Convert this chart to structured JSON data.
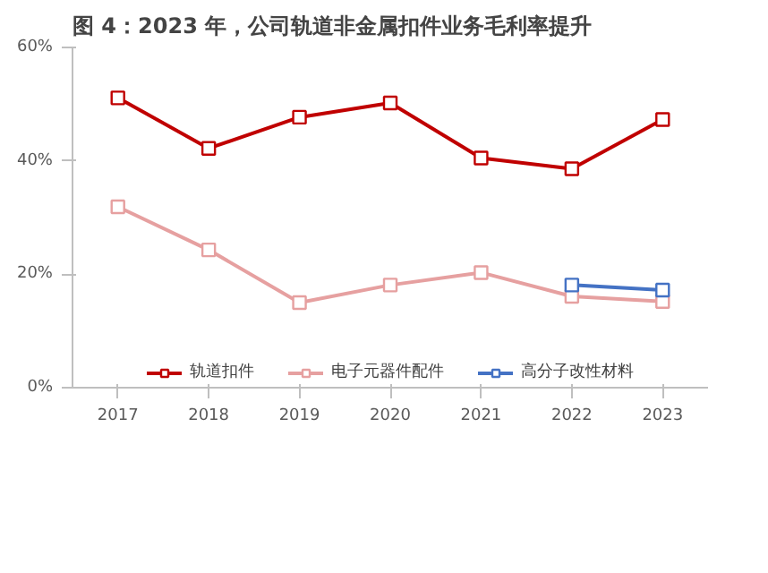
{
  "chart_data": {
    "type": "line",
    "title": "图 4：2023 年，公司轨道非金属扣件业务毛利率提升",
    "x": [
      2017,
      2018,
      2019,
      2020,
      2021,
      2022,
      2023
    ],
    "series": [
      {
        "name": "轨道扣件",
        "color": "#c00000",
        "values": [
          51.1,
          42.2,
          47.7,
          50.2,
          40.5,
          38.6,
          47.3
        ]
      },
      {
        "name": "电子元器件配件",
        "color": "#e6a0a0",
        "values": [
          31.9,
          24.3,
          15.0,
          18.1,
          20.3,
          16.1,
          15.2
        ]
      },
      {
        "name": "高分子改性材料",
        "color": "#4472c4",
        "x": [
          2022,
          2023
        ],
        "values": [
          18.1,
          17.2
        ]
      }
    ],
    "xlim": [
      2016.5,
      2023.5
    ],
    "xticks": [
      2017,
      2018,
      2019,
      2020,
      2021,
      2022,
      2023
    ],
    "ylim": [
      0,
      60
    ],
    "yticks": [
      {
        "value": 0,
        "label": "0%"
      },
      {
        "value": 20,
        "label": "20%"
      },
      {
        "value": 40,
        "label": "40%"
      },
      {
        "value": 60,
        "label": "60%"
      }
    ],
    "grid": false,
    "legend": "bottom",
    "marker": "square",
    "line_style": "solid"
  }
}
